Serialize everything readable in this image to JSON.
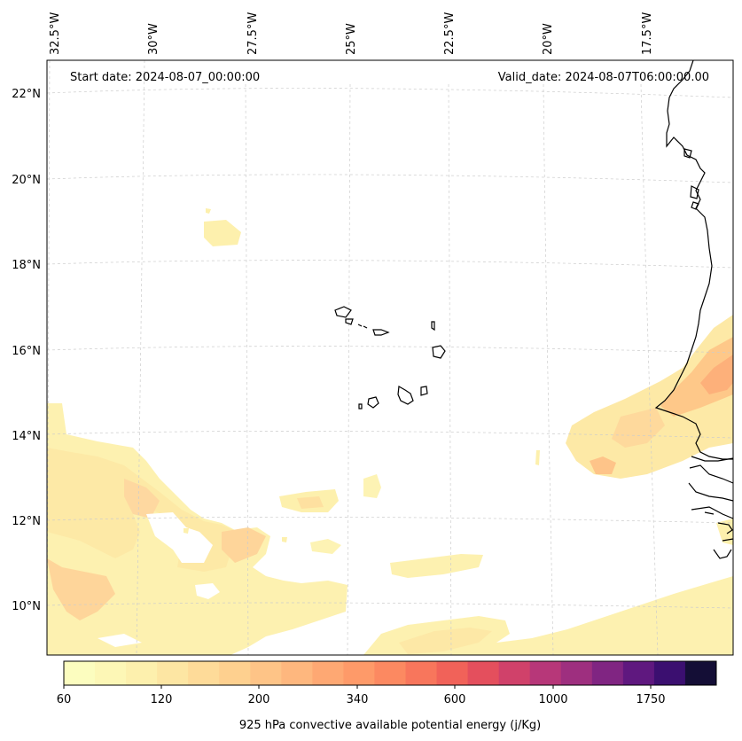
{
  "header": {
    "start_date": "Start date: 2024-08-07_00:00:00",
    "valid_date": "Valid_date: 2024-08-07T06:00:00.00"
  },
  "longitude_labels": [
    "32.5°W",
    "30°W",
    "27.5°W",
    "25°W",
    "22.5°W",
    "20°W",
    "17.5°W"
  ],
  "latitude_labels": [
    "22°N",
    "20°N",
    "18°N",
    "16°N",
    "14°N",
    "12°N",
    "10°N"
  ],
  "colorbar": {
    "title": "925 hPa convective available potential energy (j/Kg)",
    "tick_labels": [
      "60",
      "120",
      "200",
      "340",
      "600",
      "1000",
      "1750"
    ],
    "colors": [
      "#fcfdbf",
      "#fdf7b6",
      "#fdf0ad",
      "#fde6a3",
      "#fedb99",
      "#fed08f",
      "#fec487",
      "#feb77e",
      "#fea873",
      "#fe9a69",
      "#fc8961",
      "#f8765c",
      "#f16259",
      "#e44f5d",
      "#d0416a",
      "#b73779",
      "#9e2f7f",
      "#802582",
      "#5f187f",
      "#3b0f70",
      "#140e36"
    ]
  },
  "colors": {
    "frame": "#000000",
    "grid": "#cccccc",
    "coast": "#000000"
  }
}
